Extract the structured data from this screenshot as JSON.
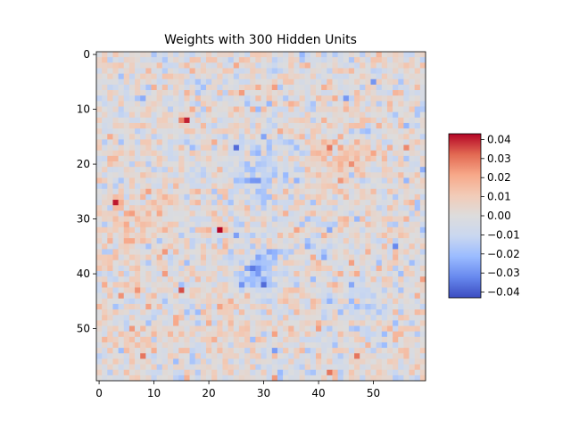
{
  "chart_data": {
    "type": "heatmap",
    "title": "Weights with 300 Hidden Units",
    "xlabel": "",
    "ylabel": "",
    "rows": 60,
    "cols": 60,
    "x_ticks": [
      0,
      10,
      20,
      30,
      40,
      50
    ],
    "y_ticks": [
      0,
      10,
      20,
      30,
      40,
      50
    ],
    "xlim": [
      -0.5,
      59.5
    ],
    "ylim": [
      59.5,
      -0.5
    ],
    "grid": false,
    "legend": "none",
    "colormap": "coolwarm",
    "colormap_stops": [
      "#3b4cc0",
      "#6788ee",
      "#9abbff",
      "#c9d7f0",
      "#dddcdc",
      "#f2cbb7",
      "#f7a889",
      "#e26952",
      "#b40426"
    ],
    "color_range": [
      -0.043,
      0.043
    ],
    "colorbar": {
      "placement": "right",
      "ticks": [
        0.04,
        0.03,
        0.02,
        0.01,
        0.0,
        -0.01,
        -0.02,
        -0.03,
        -0.04
      ],
      "tick_labels": [
        "0.04",
        "0.03",
        "0.02",
        "0.01",
        "0.00",
        "−0.01",
        "−0.02",
        "−0.03",
        "−0.04"
      ]
    },
    "value_summary": {
      "description": "Grainy noise pattern in [-0.043, 0.043]; broad blue (negative) patches near rows 20-24 cols 25-33 and rows 38-43 cols 25-33; red (positive) patches near rows 17-22 cols 40-48 and rows 28-34 cols 2-12; isolated strong points at (row 12,col 16), (27,3), (32,22), (43,15)."
    }
  }
}
